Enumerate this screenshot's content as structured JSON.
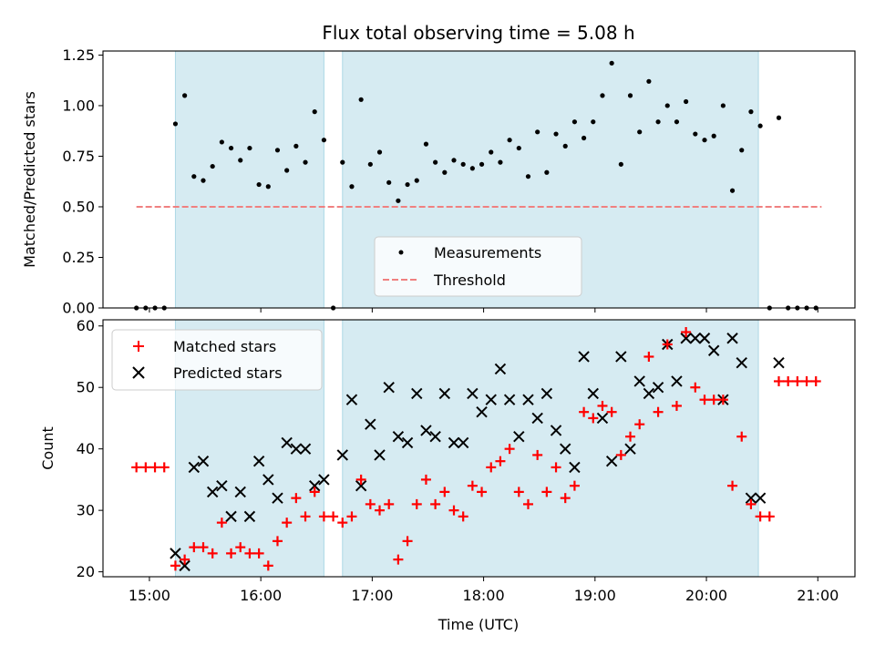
{
  "chart_data": [
    {
      "type": "scatter",
      "title": "Flux total observing time = 5.08 h",
      "xlabel": "",
      "ylabel": "Matched/Predicted stars",
      "xlim": [
        "14:35",
        "21:20"
      ],
      "ylim": [
        0,
        1.27
      ],
      "yticks": [
        "0.00",
        "0.25",
        "0.50",
        "0.75",
        "1.00",
        "1.25"
      ],
      "xticks": [
        "15:00",
        "16:00",
        "17:00",
        "18:00",
        "19:00",
        "20:00",
        "21:00"
      ],
      "shaded_intervals": [
        [
          "15:14",
          "16:34"
        ],
        [
          "16:44",
          "20:28"
        ]
      ],
      "grid": false,
      "legend_position": "lower-center",
      "series": [
        {
          "name": "Measurements",
          "marker": "dot",
          "color": "#000000",
          "x": [
            "14:53",
            "14:58",
            "15:03",
            "15:08",
            "15:14",
            "15:19",
            "15:24",
            "15:29",
            "15:34",
            "15:39",
            "15:44",
            "15:49",
            "15:54",
            "15:59",
            "16:04",
            "16:09",
            "16:14",
            "16:19",
            "16:24",
            "16:29",
            "16:34",
            "16:39",
            "16:44",
            "16:49",
            "16:54",
            "16:59",
            "17:04",
            "17:09",
            "17:14",
            "17:19",
            "17:24",
            "17:29",
            "17:34",
            "17:39",
            "17:44",
            "17:49",
            "17:54",
            "17:59",
            "18:04",
            "18:09",
            "18:14",
            "18:19",
            "18:24",
            "18:29",
            "18:34",
            "18:39",
            "18:44",
            "18:49",
            "18:54",
            "18:59",
            "19:04",
            "19:09",
            "19:14",
            "19:19",
            "19:24",
            "19:29",
            "19:34",
            "19:39",
            "19:44",
            "19:49",
            "19:54",
            "19:59",
            "20:04",
            "20:09",
            "20:14",
            "20:19",
            "20:24",
            "20:29",
            "20:34",
            "20:39",
            "20:44",
            "20:49",
            "20:54",
            "20:59"
          ],
          "y": [
            0,
            0,
            0,
            0,
            0.91,
            1.05,
            0.65,
            0.63,
            0.7,
            0.82,
            0.79,
            0.73,
            0.79,
            0.61,
            0.6,
            0.78,
            0.68,
            0.8,
            0.72,
            0.97,
            0.83,
            0,
            0.72,
            0.6,
            1.03,
            0.71,
            0.77,
            0.62,
            0.53,
            0.61,
            0.63,
            0.81,
            0.72,
            0.67,
            0.73,
            0.71,
            0.69,
            0.71,
            0.77,
            0.72,
            0.83,
            0.79,
            0.65,
            0.87,
            0.67,
            0.86,
            0.8,
            0.92,
            0.84,
            0.92,
            1.05,
            1.21,
            0.71,
            1.05,
            0.87,
            1.12,
            0.92,
            1,
            0.92,
            1.02,
            0.86,
            0.83,
            0.85,
            1,
            0.58,
            0.78,
            0.97,
            0.9,
            0,
            0.94,
            0,
            0,
            0,
            0
          ]
        },
        {
          "name": "Threshold",
          "marker": "dashed-line",
          "color": "#f08080",
          "x": [
            "14:53",
            "21:02"
          ],
          "y": [
            0.5,
            0.5
          ]
        }
      ]
    },
    {
      "type": "scatter",
      "title": "",
      "xlabel": "Time (UTC)",
      "ylabel": "Count",
      "xlim": [
        "14:35",
        "21:20"
      ],
      "ylim": [
        19.2,
        61
      ],
      "yticks": [
        "20",
        "30",
        "40",
        "50",
        "60"
      ],
      "xticks": [
        "15:00",
        "16:00",
        "17:00",
        "18:00",
        "19:00",
        "20:00",
        "21:00"
      ],
      "shaded_intervals": [
        [
          "15:14",
          "16:34"
        ],
        [
          "16:44",
          "20:28"
        ]
      ],
      "grid": false,
      "legend_position": "upper-left",
      "series": [
        {
          "name": "Matched stars",
          "marker": "plus",
          "color": "#ff0000",
          "x": [
            "14:53",
            "14:58",
            "15:03",
            "15:08",
            "15:14",
            "15:19",
            "15:24",
            "15:29",
            "15:34",
            "15:39",
            "15:44",
            "15:49",
            "15:54",
            "15:59",
            "16:04",
            "16:09",
            "16:14",
            "16:19",
            "16:24",
            "16:29",
            "16:34",
            "16:39",
            "16:44",
            "16:49",
            "16:54",
            "16:59",
            "17:04",
            "17:09",
            "17:14",
            "17:19",
            "17:24",
            "17:29",
            "17:34",
            "17:39",
            "17:44",
            "17:49",
            "17:54",
            "17:59",
            "18:04",
            "18:09",
            "18:14",
            "18:19",
            "18:24",
            "18:29",
            "18:34",
            "18:39",
            "18:44",
            "18:49",
            "18:54",
            "18:59",
            "19:04",
            "19:09",
            "19:14",
            "19:19",
            "19:24",
            "19:29",
            "19:34",
            "19:39",
            "19:44",
            "19:49",
            "19:54",
            "19:59",
            "20:04",
            "20:09",
            "20:14",
            "20:19",
            "20:24",
            "20:29",
            "20:34",
            "20:39",
            "20:44",
            "20:49",
            "20:54",
            "20:59"
          ],
          "y": [
            37,
            37,
            37,
            37,
            21,
            22,
            24,
            24,
            23,
            28,
            23,
            24,
            23,
            23,
            21,
            25,
            28,
            32,
            29,
            33,
            29,
            29,
            28,
            29,
            35,
            31,
            30,
            31,
            22,
            25,
            31,
            35,
            31,
            33,
            30,
            29,
            34,
            33,
            37,
            38,
            40,
            33,
            31,
            39,
            33,
            37,
            32,
            34,
            46,
            45,
            47,
            46,
            39,
            42,
            44,
            55,
            46,
            57,
            47,
            59,
            50,
            48,
            48,
            48,
            34,
            42,
            31,
            29,
            29,
            51,
            51,
            51,
            51,
            51
          ]
        },
        {
          "name": "Predicted stars",
          "marker": "x",
          "color": "#000000",
          "x": [
            "15:14",
            "15:19",
            "15:24",
            "15:29",
            "15:34",
            "15:39",
            "15:44",
            "15:49",
            "15:54",
            "15:59",
            "16:04",
            "16:09",
            "16:14",
            "16:19",
            "16:24",
            "16:29",
            "16:34",
            "16:44",
            "16:49",
            "16:54",
            "16:59",
            "17:04",
            "17:09",
            "17:14",
            "17:19",
            "17:24",
            "17:29",
            "17:34",
            "17:39",
            "17:44",
            "17:49",
            "17:54",
            "17:59",
            "18:04",
            "18:09",
            "18:14",
            "18:19",
            "18:24",
            "18:29",
            "18:34",
            "18:39",
            "18:44",
            "18:49",
            "18:54",
            "18:59",
            "19:04",
            "19:09",
            "19:14",
            "19:19",
            "19:24",
            "19:29",
            "19:34",
            "19:39",
            "19:44",
            "19:49",
            "19:54",
            "19:59",
            "20:04",
            "20:09",
            "20:14",
            "20:19",
            "20:24",
            "20:29",
            "20:39"
          ],
          "y": [
            23,
            21,
            37,
            38,
            33,
            34,
            29,
            33,
            29,
            38,
            35,
            32,
            41,
            40,
            40,
            34,
            35,
            39,
            48,
            34,
            44,
            39,
            50,
            42,
            41,
            49,
            43,
            42,
            49,
            41,
            41,
            49,
            46,
            48,
            53,
            48,
            42,
            48,
            45,
            49,
            43,
            40,
            37,
            55,
            49,
            45,
            38,
            55,
            40,
            51,
            49,
            50,
            57,
            51,
            58,
            58,
            58,
            56,
            48,
            58,
            54,
            32,
            32,
            54
          ]
        }
      ]
    }
  ]
}
